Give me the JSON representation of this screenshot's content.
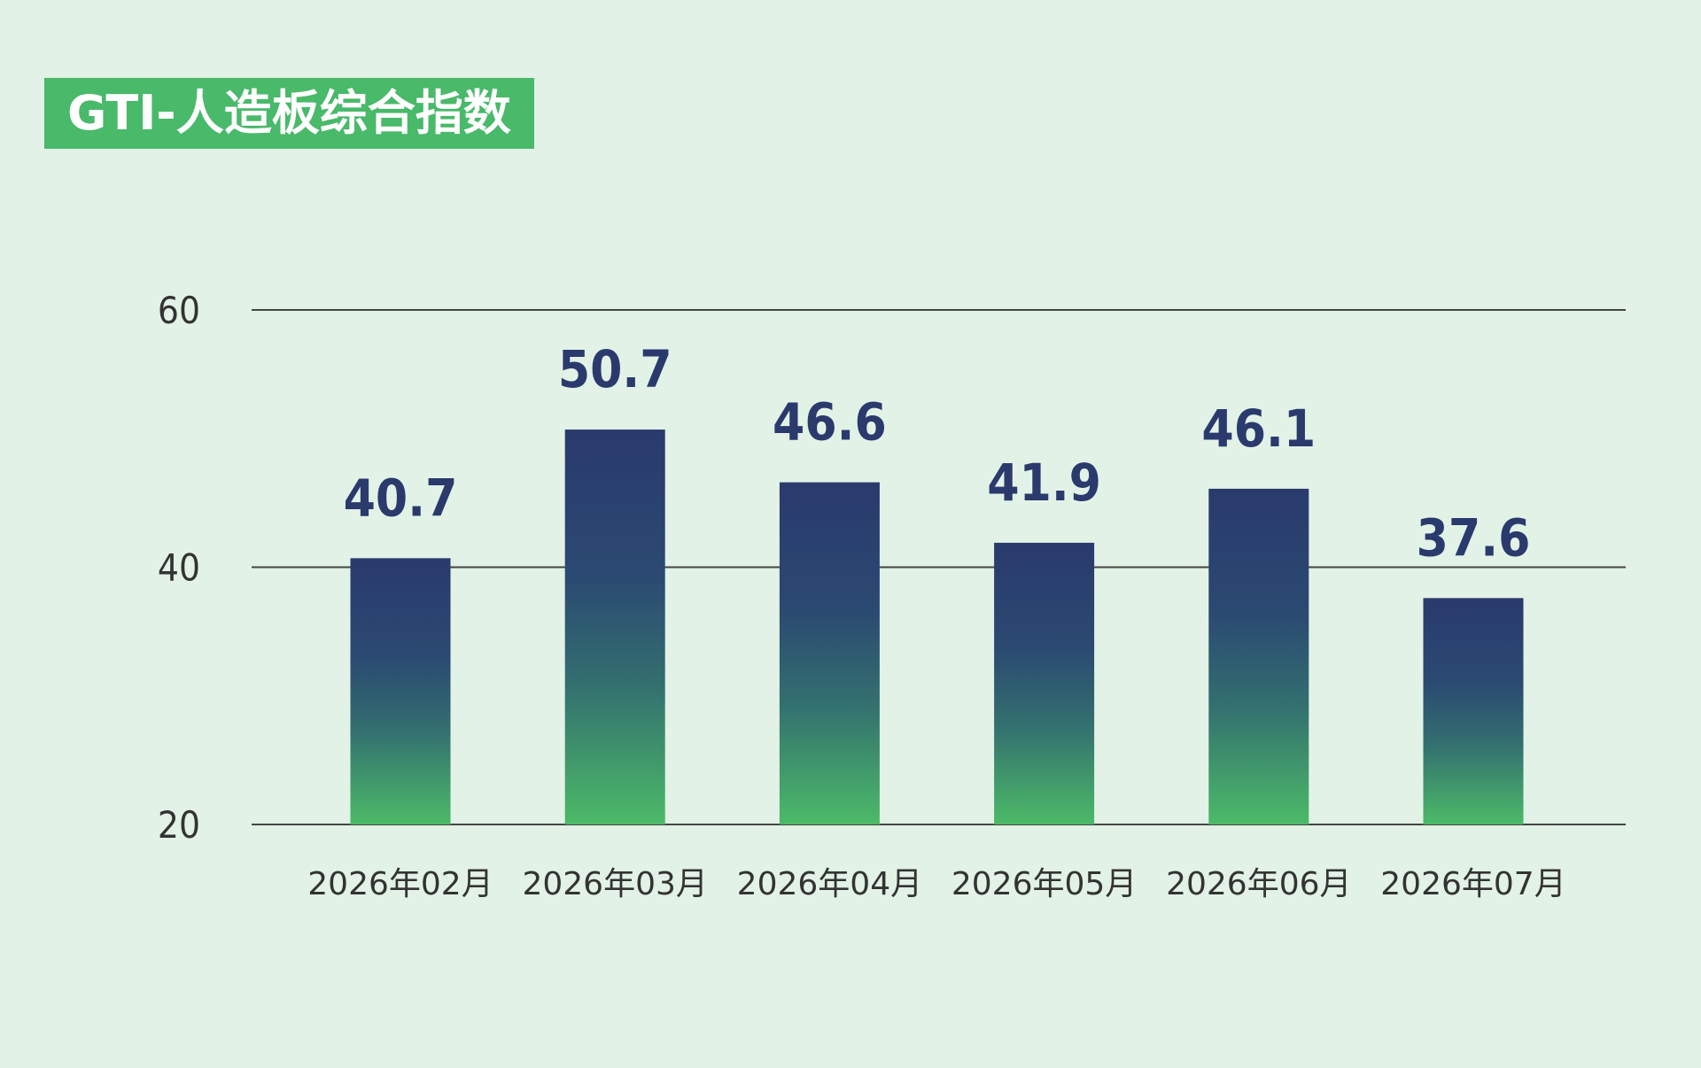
{
  "chart_data": {
    "type": "bar",
    "title": "GTI-人造板综合指数",
    "categories": [
      "2026年02月",
      "2026年03月",
      "2026年04月",
      "2026年05月",
      "2026年06月",
      "2026年07月"
    ],
    "values": [
      40.7,
      50.7,
      46.6,
      41.9,
      46.1,
      37.6
    ],
    "value_labels": [
      "40.7",
      "50.7",
      "46.6",
      "41.9",
      "46.1",
      "37.6"
    ],
    "y_ticks": [
      "20",
      "40",
      "60"
    ],
    "ylim": [
      20,
      60
    ],
    "grid": true,
    "legend": "none"
  },
  "colors": {
    "background": "#e2f2e6",
    "title_badge": "#49b96a",
    "bar_top": "#2a3a6d",
    "bar_bottom": "#4cba68",
    "value_label": "#2a3a6d",
    "gridline": "#444444"
  }
}
